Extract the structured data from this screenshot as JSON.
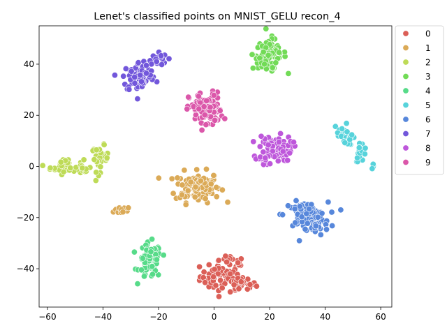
{
  "chart_data": {
    "type": "scatter",
    "title": "Lenet's classified points on MNIST_GELU recon_4",
    "xlabel": "",
    "ylabel": "",
    "xlim": [
      -63,
      64
    ],
    "ylim": [
      -55,
      55
    ],
    "xticks": [
      -60,
      -40,
      -20,
      0,
      20,
      40,
      60
    ],
    "yticks": [
      -40,
      -20,
      0,
      20,
      40
    ],
    "grid": false,
    "legend": "outside-right-top",
    "series": [
      {
        "name": "0",
        "color": "#db5f57",
        "clusters": [
          {
            "cx": 3,
            "cy": -43,
            "sx": 4,
            "sy": 3,
            "n": 60
          },
          {
            "cx": 10,
            "cy": -46,
            "sx": 2.5,
            "sy": 1.5,
            "n": 25
          },
          {
            "cx": 6,
            "cy": -37,
            "sx": 2.5,
            "sy": 1,
            "n": 12
          }
        ]
      },
      {
        "name": "1",
        "color": "#dbaa57",
        "clusters": [
          {
            "cx": -6,
            "cy": -8,
            "sx": 4,
            "sy": 3,
            "n": 110
          },
          {
            "cx": -34,
            "cy": -17,
            "sx": 1.5,
            "sy": 1,
            "n": 12
          }
        ]
      },
      {
        "name": "2",
        "color": "#bedb57",
        "clusters": [
          {
            "cx": -53,
            "cy": 0,
            "sx": 3,
            "sy": 1.5,
            "n": 40
          },
          {
            "cx": -41,
            "cy": 3,
            "sx": 1.5,
            "sy": 2.5,
            "n": 35
          },
          {
            "cx": -47,
            "cy": -1,
            "sx": 1,
            "sy": 0.6,
            "n": 8
          }
        ]
      },
      {
        "name": "3",
        "color": "#72db57",
        "clusters": [
          {
            "cx": 20,
            "cy": 44,
            "sx": 3,
            "sy": 3,
            "n": 75
          },
          {
            "cx": 19,
            "cy": 39,
            "sx": 2,
            "sy": 1,
            "n": 15
          }
        ]
      },
      {
        "name": "4",
        "color": "#57db89",
        "clusters": [
          {
            "cx": -23,
            "cy": -37,
            "sx": 2,
            "sy": 3.5,
            "n": 75
          }
        ]
      },
      {
        "name": "5",
        "color": "#57d3db",
        "clusters": [
          {
            "cx": 46,
            "cy": 14,
            "sx": 1.5,
            "sy": 1.5,
            "n": 14
          },
          {
            "cx": 49,
            "cy": 10,
            "sx": 1,
            "sy": 1,
            "n": 10
          },
          {
            "cx": 53,
            "cy": 6,
            "sx": 1,
            "sy": 2,
            "n": 20
          },
          {
            "cx": 57,
            "cy": 0,
            "sx": 0.6,
            "sy": 0.8,
            "n": 6
          }
        ]
      },
      {
        "name": "6",
        "color": "#5787db",
        "clusters": [
          {
            "cx": 33,
            "cy": -19,
            "sx": 4,
            "sy": 2.5,
            "n": 80
          },
          {
            "cx": 37,
            "cy": -24,
            "sx": 2,
            "sy": 1.5,
            "n": 20
          }
        ]
      },
      {
        "name": "7",
        "color": "#7257db",
        "clusters": [
          {
            "cx": -27,
            "cy": 35,
            "sx": 3,
            "sy": 3,
            "n": 70
          },
          {
            "cx": -21,
            "cy": 42,
            "sx": 2,
            "sy": 1.5,
            "n": 20
          }
        ]
      },
      {
        "name": "8",
        "color": "#be57db",
        "clusters": [
          {
            "cx": 22,
            "cy": 7,
            "sx": 3,
            "sy": 2.5,
            "n": 90
          },
          {
            "cx": 18,
            "cy": 3,
            "sx": 1.5,
            "sy": 1.5,
            "n": 15
          }
        ]
      },
      {
        "name": "9",
        "color": "#db57aa",
        "clusters": [
          {
            "cx": -3,
            "cy": 22,
            "sx": 3,
            "sy": 3.5,
            "n": 90
          }
        ]
      }
    ]
  }
}
